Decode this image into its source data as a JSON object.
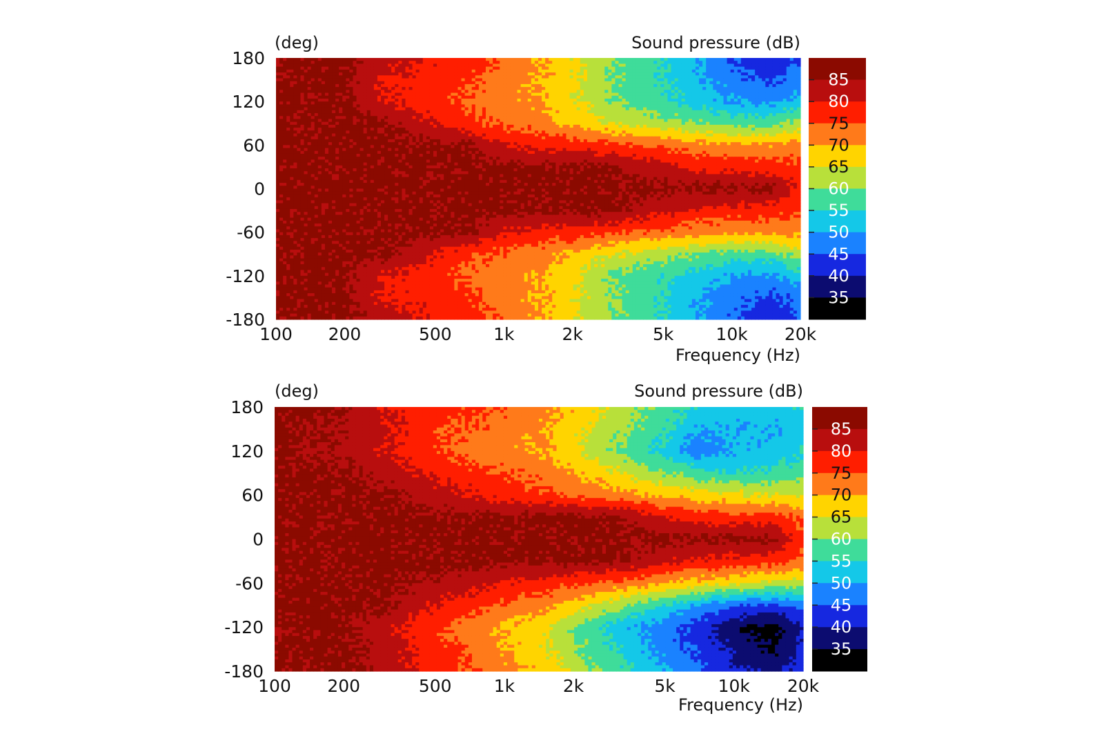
{
  "chart_data": [
    {
      "type": "heatmap",
      "title": "",
      "ylabel_unit": "(deg)",
      "colorbar_title": "Sound pressure  (dB)",
      "xlabel": "Frequency  (Hz)",
      "x_scale": "log",
      "xlim": [
        100,
        20000
      ],
      "ylim": [
        -180,
        180
      ],
      "xticks": [
        {
          "value": 100,
          "label": "100"
        },
        {
          "value": 200,
          "label": "200"
        },
        {
          "value": 500,
          "label": "500"
        },
        {
          "value": 1000,
          "label": "1k"
        },
        {
          "value": 2000,
          "label": "2k"
        },
        {
          "value": 5000,
          "label": "5k"
        },
        {
          "value": 10000,
          "label": "10k"
        },
        {
          "value": 20000,
          "label": "20k"
        }
      ],
      "yticks": [
        {
          "value": 180,
          "label": "180"
        },
        {
          "value": 120,
          "label": "120"
        },
        {
          "value": 60,
          "label": "60"
        },
        {
          "value": 0,
          "label": "0"
        },
        {
          "value": -60,
          "label": "-60"
        },
        {
          "value": -120,
          "label": "-120"
        },
        {
          "value": -180,
          "label": "-180"
        }
      ],
      "contour_levels": [
        {
          "value": 85,
          "label": "85"
        },
        {
          "value": 80,
          "label": "80"
        },
        {
          "value": 75,
          "label": "75"
        },
        {
          "value": 70,
          "label": "70"
        },
        {
          "value": 65,
          "label": "65"
        },
        {
          "value": 60,
          "label": "60"
        },
        {
          "value": 55,
          "label": "55"
        },
        {
          "value": 50,
          "label": "50"
        },
        {
          "value": 45,
          "label": "45"
        },
        {
          "value": 40,
          "label": "40"
        },
        {
          "value": 35,
          "label": "35"
        }
      ],
      "freq_grid": [
        100,
        200,
        300,
        500,
        700,
        1000,
        1500,
        2000,
        3000,
        5000,
        7000,
        10000,
        15000,
        20000
      ],
      "angle_grid": [
        0,
        30,
        60,
        90,
        120,
        150,
        180
      ],
      "values_upper": [
        [
          86,
          86,
          86,
          86,
          86,
          86,
          86,
          86,
          86,
          86,
          86,
          86,
          86,
          78
        ],
        [
          86,
          86,
          86,
          86,
          86,
          86,
          86,
          86,
          86,
          81,
          79,
          78,
          77,
          76
        ],
        [
          86,
          86,
          86,
          86,
          86,
          80,
          78,
          78,
          76,
          74,
          72,
          71,
          71,
          72
        ],
        [
          86,
          86,
          86,
          80,
          76,
          74,
          72,
          69,
          65,
          62,
          60,
          58,
          58,
          62
        ],
        [
          86,
          86,
          80,
          77,
          74,
          72,
          70,
          66,
          60,
          56,
          53,
          50,
          49,
          53
        ],
        [
          86,
          86,
          79,
          78,
          76,
          72,
          70,
          66,
          60,
          55,
          51,
          47,
          44,
          47
        ],
        [
          86,
          86,
          83,
          79,
          78,
          74,
          70,
          66,
          60,
          55,
          50,
          45,
          41,
          45
        ]
      ],
      "values_lower": [
        [
          86,
          86,
          86,
          86,
          86,
          86,
          86,
          86,
          86,
          86,
          86,
          86,
          86,
          78
        ],
        [
          86,
          86,
          86,
          86,
          86,
          86,
          86,
          86,
          86,
          81,
          79,
          78,
          77,
          76
        ],
        [
          86,
          86,
          86,
          86,
          86,
          80,
          78,
          78,
          76,
          74,
          72,
          71,
          71,
          72
        ],
        [
          86,
          86,
          86,
          80,
          76,
          74,
          72,
          69,
          65,
          62,
          60,
          58,
          58,
          62
        ],
        [
          86,
          86,
          80,
          77,
          74,
          72,
          70,
          66,
          60,
          56,
          53,
          50,
          49,
          53
        ],
        [
          86,
          86,
          79,
          78,
          76,
          72,
          70,
          66,
          60,
          55,
          51,
          47,
          44,
          47
        ],
        [
          86,
          86,
          83,
          79,
          78,
          74,
          70,
          66,
          60,
          55,
          50,
          45,
          41,
          45
        ]
      ]
    },
    {
      "type": "heatmap",
      "title": "",
      "ylabel_unit": "(deg)",
      "colorbar_title": "Sound pressure  (dB)",
      "xlabel": "Frequency  (Hz)",
      "x_scale": "log",
      "xlim": [
        100,
        20000
      ],
      "ylim": [
        -180,
        180
      ],
      "xticks": [
        {
          "value": 100,
          "label": "100"
        },
        {
          "value": 200,
          "label": "200"
        },
        {
          "value": 500,
          "label": "500"
        },
        {
          "value": 1000,
          "label": "1k"
        },
        {
          "value": 2000,
          "label": "2k"
        },
        {
          "value": 5000,
          "label": "5k"
        },
        {
          "value": 10000,
          "label": "10k"
        },
        {
          "value": 20000,
          "label": "20k"
        }
      ],
      "yticks": [
        {
          "value": 180,
          "label": "180"
        },
        {
          "value": 120,
          "label": "120"
        },
        {
          "value": 60,
          "label": "60"
        },
        {
          "value": 0,
          "label": "0"
        },
        {
          "value": -60,
          "label": "-60"
        },
        {
          "value": -120,
          "label": "-120"
        },
        {
          "value": -180,
          "label": "-180"
        }
      ],
      "contour_levels": [
        {
          "value": 85,
          "label": "85"
        },
        {
          "value": 80,
          "label": "80"
        },
        {
          "value": 75,
          "label": "75"
        },
        {
          "value": 70,
          "label": "70"
        },
        {
          "value": 65,
          "label": "65"
        },
        {
          "value": 60,
          "label": "60"
        },
        {
          "value": 55,
          "label": "55"
        },
        {
          "value": 50,
          "label": "50"
        },
        {
          "value": 45,
          "label": "45"
        },
        {
          "value": 40,
          "label": "40"
        },
        {
          "value": 35,
          "label": "35"
        }
      ],
      "freq_grid": [
        100,
        200,
        300,
        500,
        700,
        1000,
        1500,
        2000,
        3000,
        5000,
        7000,
        10000,
        15000,
        20000
      ],
      "angle_grid": [
        0,
        30,
        60,
        90,
        120,
        150,
        180
      ],
      "values_upper": [
        [
          86,
          86,
          86,
          86,
          86,
          86,
          86,
          86,
          86,
          86,
          86,
          86,
          86,
          76
        ],
        [
          86,
          86,
          86,
          86,
          86,
          86,
          86,
          86,
          86,
          80,
          78,
          77,
          77,
          74
        ],
        [
          86,
          86,
          86,
          82,
          80,
          78,
          76,
          74,
          72,
          69,
          67,
          66,
          65,
          64
        ],
        [
          86,
          86,
          83,
          79,
          77,
          75,
          73,
          70,
          66,
          60,
          57,
          55,
          56,
          58
        ],
        [
          86,
          84,
          80,
          76,
          73,
          72,
          70,
          66,
          60,
          53,
          47,
          50,
          52,
          54
        ],
        [
          86,
          84,
          81,
          76,
          74,
          73,
          70,
          67,
          62,
          56,
          50,
          51,
          50,
          53
        ],
        [
          86,
          86,
          80,
          78,
          76,
          74,
          72,
          69,
          64,
          58,
          54,
          52,
          52,
          55
        ]
      ],
      "values_lower": [
        [
          86,
          86,
          86,
          86,
          86,
          86,
          86,
          86,
          86,
          86,
          86,
          86,
          86,
          76
        ],
        [
          86,
          86,
          86,
          86,
          86,
          86,
          86,
          86,
          86,
          81,
          79,
          78,
          77,
          74
        ],
        [
          86,
          86,
          86,
          84,
          82,
          80,
          78,
          76,
          74,
          70,
          68,
          66,
          64,
          62
        ],
        [
          86,
          86,
          86,
          80,
          77,
          74,
          72,
          68,
          62,
          55,
          50,
          46,
          44,
          48
        ],
        [
          86,
          86,
          82,
          76,
          72,
          70,
          66,
          60,
          53,
          47,
          42,
          36,
          33,
          40
        ],
        [
          86,
          86,
          83,
          77,
          74,
          70,
          66,
          61,
          55,
          48,
          44,
          39,
          34,
          42
        ],
        [
          86,
          86,
          83,
          78,
          75,
          72,
          68,
          63,
          57,
          50,
          46,
          41,
          38,
          44
        ]
      ]
    }
  ],
  "colorbar_colors": [
    {
      "min": 85,
      "color": "#8b0a00"
    },
    {
      "min": 80,
      "color": "#b80e0e"
    },
    {
      "min": 75,
      "color": "#ff1e00"
    },
    {
      "min": 70,
      "color": "#ff7a1a"
    },
    {
      "min": 65,
      "color": "#ffd400"
    },
    {
      "min": 60,
      "color": "#b8e03a"
    },
    {
      "min": 55,
      "color": "#3fdc9a"
    },
    {
      "min": 50,
      "color": "#14c8e8"
    },
    {
      "min": 45,
      "color": "#1a82ff"
    },
    {
      "min": 40,
      "color": "#1628e0"
    },
    {
      "min": 35,
      "color": "#0c0c70"
    },
    {
      "min": -1000,
      "color": "#000000"
    }
  ]
}
